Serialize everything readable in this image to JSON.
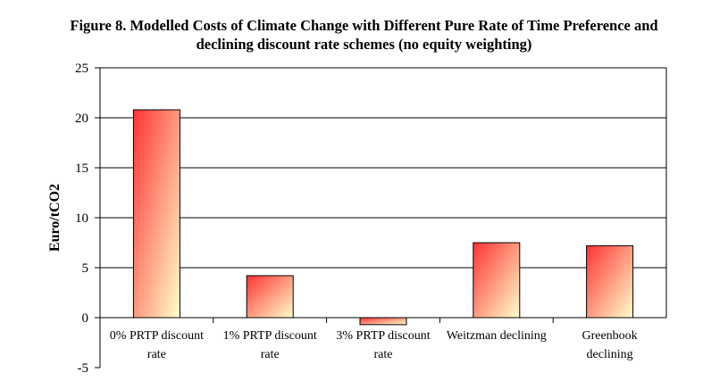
{
  "title_line1": "Figure 8.  Modelled Costs of Climate Change with Different Pure Rate of Time Preference and",
  "title_line2": "declining discount rate schemes (no equity weighting)",
  "chart_data": {
    "type": "bar",
    "title": "Figure 8.  Modelled Costs of Climate Change with Different Pure Rate of Time Preference and declining discount rate schemes (no equity weighting)",
    "ylabel": "Euro/tCO2",
    "xlabel": "",
    "categories": [
      [
        "0% PRTP discount",
        "rate"
      ],
      [
        "1% PRTP discount",
        "rate"
      ],
      [
        "3% PRTP discount",
        "rate"
      ],
      [
        "Weitzman declining"
      ],
      [
        "Greenbook",
        "declining"
      ]
    ],
    "values": [
      20.8,
      4.2,
      -0.7,
      7.5,
      7.2
    ],
    "ylim": [
      -5,
      25
    ],
    "yticks": [
      -5,
      0,
      5,
      10,
      15,
      20,
      25
    ],
    "grid": true,
    "legend": "none",
    "colors": {
      "bar_top": "#ff3333",
      "bar_bottom": "#ffffcc",
      "plot_bg": "#ffffff",
      "grid": "#000000"
    }
  }
}
